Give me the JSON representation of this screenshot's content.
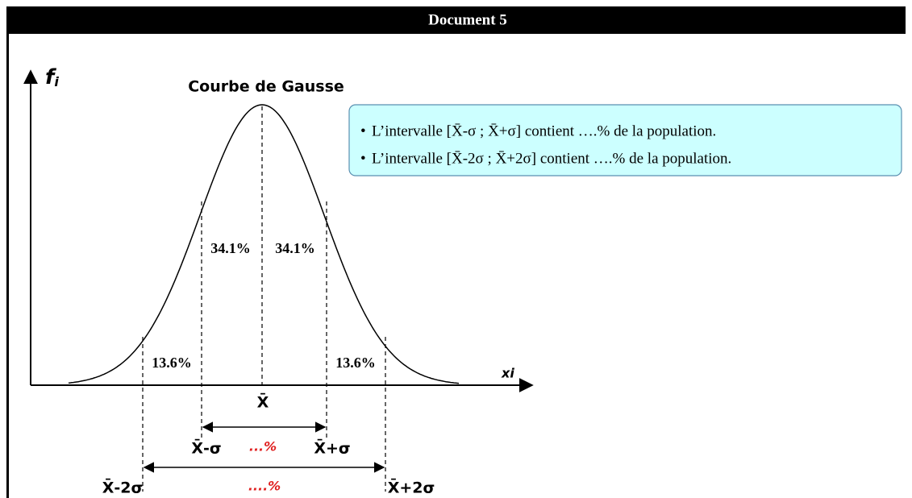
{
  "header": {
    "title": "Document 5"
  },
  "axes": {
    "y_label": {
      "base": "f",
      "sub": "i"
    },
    "x_label": "xi"
  },
  "curve": {
    "title": "Courbe de Gausse"
  },
  "regions": {
    "left_inner": "34.1%",
    "right_inner": "34.1%",
    "left_outer": "13.6%",
    "right_outer": "13.6%"
  },
  "markers": {
    "mean": "X̄",
    "minus_sigma": "X̄-σ",
    "plus_sigma": "X̄+σ",
    "minus_2sigma": "X̄-2σ",
    "plus_2sigma": "X̄+2σ"
  },
  "blanks": {
    "sigma": "...%",
    "two_sigma": "....%"
  },
  "box": {
    "lines": [
      "L’intervalle [X̄-σ ; X̄+σ] contient ….% de la population.",
      "L’intervalle [X̄-2σ ; X̄+2σ] contient ….% de la population."
    ]
  }
}
